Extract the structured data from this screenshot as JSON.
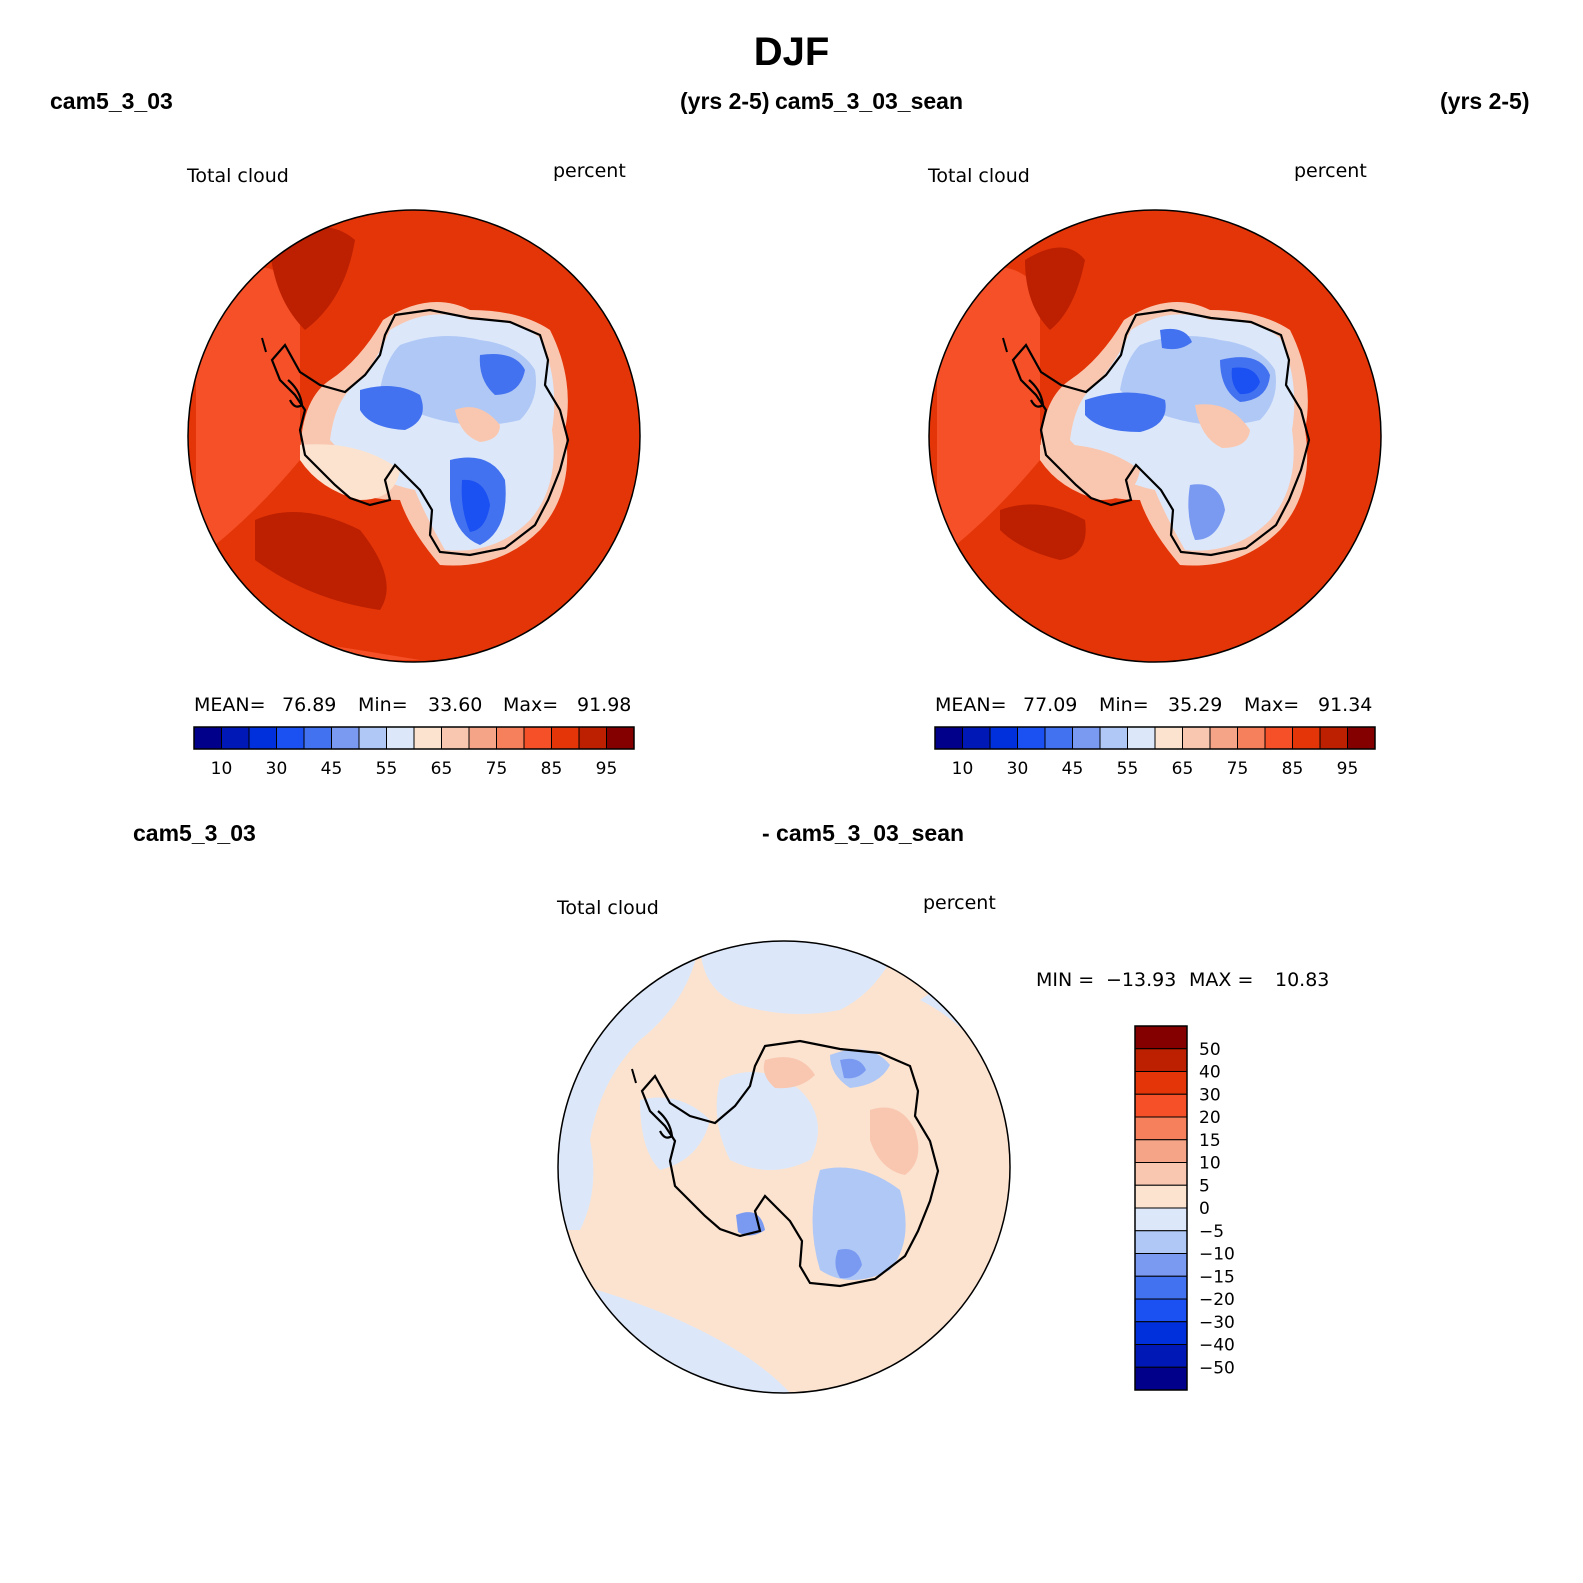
{
  "header": {
    "title": "DJF",
    "left_model": "cam5_3_03",
    "left_years": "(yrs 2-5)",
    "right_model": "cam5_3_03_sean",
    "right_years": "(yrs 2-5)",
    "diff_left": "cam5_3_03",
    "diff_right": "- cam5_3_03_sean"
  },
  "colors": {
    "abs_scale": [
      "#00008b",
      "#0018b6",
      "#0030dc",
      "#1b50f2",
      "#4372f0",
      "#7a9af2",
      "#b0c8f6",
      "#dce8fa",
      "#fbe3d0",
      "#f9c7b0",
      "#f6a488",
      "#f67f5c",
      "#f55027",
      "#e43508",
      "#bc2001",
      "#840000"
    ],
    "diff_scale": [
      "#00008b",
      "#0018b6",
      "#0030dc",
      "#1b50f2",
      "#4372f0",
      "#7a9af2",
      "#b0c8f6",
      "#dce8fa",
      "#fbe3d0",
      "#f9c7b0",
      "#f6a488",
      "#f67f5c",
      "#f55027",
      "#e43508",
      "#bc2001",
      "#840000"
    ]
  },
  "chart_data": [
    {
      "type": "heatmap",
      "projection": "south-polar-stereographic",
      "title": "Total cloud",
      "units": "percent",
      "model": "cam5_3_03",
      "years": "(yrs 2-5)",
      "stats": {
        "mean_label": "MEAN=",
        "mean": "76.89",
        "min_label": "Min=",
        "min": "33.60",
        "max_label": "Max=",
        "max": "91.98"
      },
      "contour_levels": [
        10,
        20,
        30,
        40,
        45,
        50,
        55,
        60,
        65,
        70,
        75,
        80,
        85,
        90,
        95
      ],
      "colorbar_tick_labels": [
        "10",
        "30",
        "45",
        "55",
        "65",
        "75",
        "85",
        "95"
      ],
      "ocean_base_value": 85,
      "regions": [
        {
          "lon": 0,
          "colat": 0,
          "r": 24,
          "value": 60
        },
        {
          "lon": 90,
          "colat": 9,
          "r": 13,
          "value": 40
        },
        {
          "lon": -60,
          "colat": 12,
          "r": 10,
          "value": 42
        },
        {
          "lon": 150,
          "colat": 12,
          "r": 8,
          "value": 68
        }
      ]
    },
    {
      "type": "heatmap",
      "projection": "south-polar-stereographic",
      "title": "Total cloud",
      "units": "percent",
      "model": "cam5_3_03_sean",
      "years": "(yrs 2-5)",
      "stats": {
        "mean_label": "MEAN=",
        "mean": "77.09",
        "min_label": "Min=",
        "min": "35.29",
        "max_label": "Max=",
        "max": "91.34"
      },
      "contour_levels": [
        10,
        20,
        30,
        40,
        45,
        50,
        55,
        60,
        65,
        70,
        75,
        80,
        85,
        90,
        95
      ],
      "colorbar_tick_labels": [
        "10",
        "30",
        "45",
        "55",
        "65",
        "75",
        "85",
        "95"
      ],
      "ocean_base_value": 85,
      "regions": [
        {
          "lon": 0,
          "colat": 0,
          "r": 24,
          "value": 60
        },
        {
          "lon": 120,
          "colat": 12,
          "r": 10,
          "value": 42
        },
        {
          "lon": -60,
          "colat": 14,
          "r": 9,
          "value": 42
        },
        {
          "lon": 60,
          "colat": 10,
          "r": 8,
          "value": 48
        }
      ]
    },
    {
      "type": "heatmap",
      "projection": "south-polar-stereographic",
      "title": "Total cloud",
      "units": "percent",
      "model": "cam5_3_03 - cam5_3_03_sean",
      "stats": {
        "min_label": "MIN =",
        "min": "−13.93",
        "max_label": "MAX =",
        "max": "10.83"
      },
      "contour_levels": [
        -50,
        -40,
        -30,
        -20,
        -15,
        -10,
        -5,
        0,
        5,
        10,
        15,
        20,
        30,
        40,
        50
      ],
      "colorbar_tick_labels": [
        "50",
        "40",
        "30",
        "20",
        "15",
        "10",
        "5",
        "0",
        "−5",
        "−10",
        "−15",
        "−20",
        "−30",
        "−40",
        "−50"
      ],
      "regions": [
        {
          "lon": 90,
          "colat": 10,
          "r": 12,
          "value": -7
        },
        {
          "lon": -60,
          "colat": 15,
          "r": 9,
          "value": 8
        },
        {
          "lon": 150,
          "colat": 15,
          "r": 8,
          "value": 7
        },
        {
          "lon": -120,
          "colat": 18,
          "r": 7,
          "value": -6
        }
      ]
    }
  ]
}
